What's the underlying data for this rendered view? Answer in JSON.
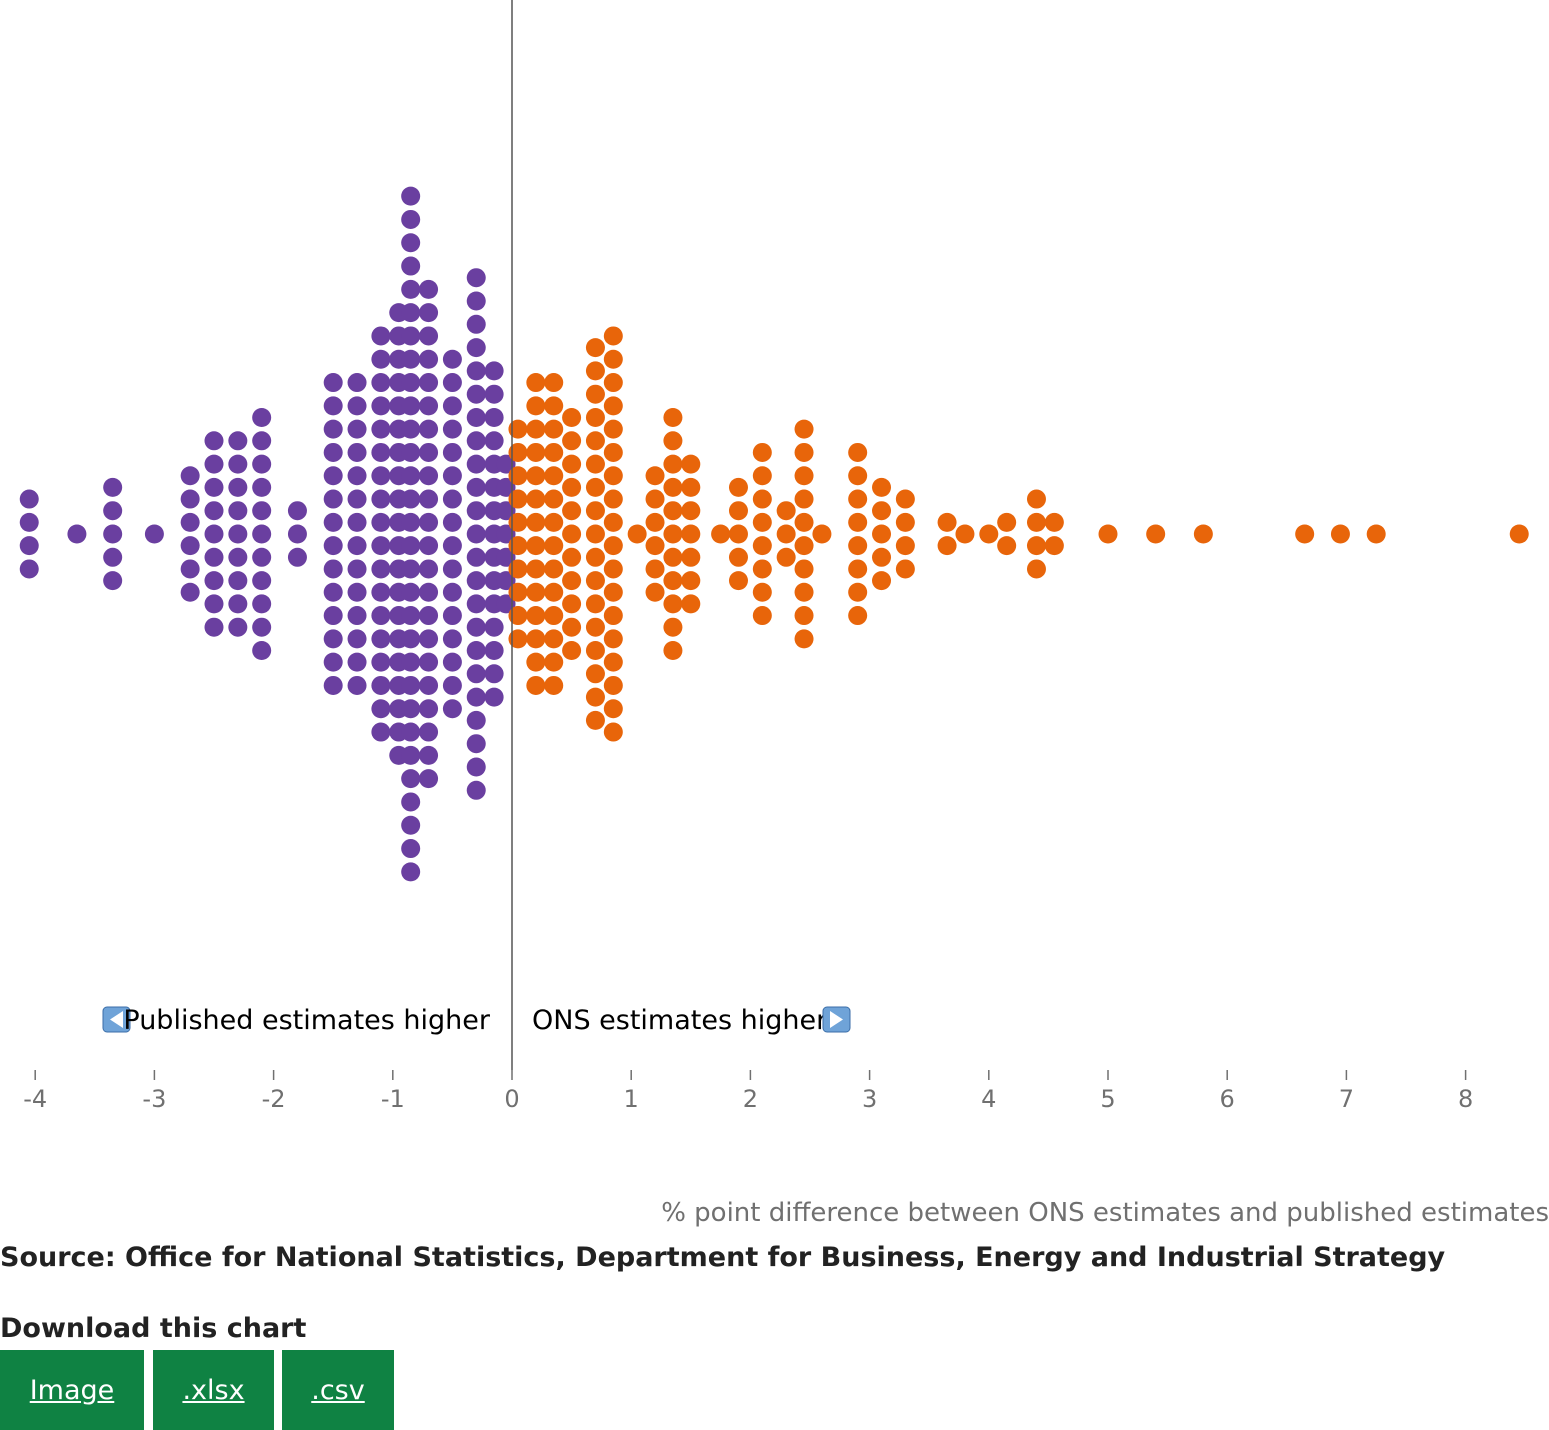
{
  "chart_data": {
    "type": "scatter",
    "subtype": "beeswarm",
    "title": "",
    "xlabel": "% point difference between ONS estimates and published estimates",
    "ylabel": "",
    "xlim": [
      -4.2,
      8.6
    ],
    "xticks": [
      -4,
      -3,
      -2,
      -1,
      0,
      1,
      2,
      3,
      4,
      5,
      6,
      7,
      8
    ],
    "reference_line": 0,
    "annotations": {
      "left": "Published estimates higher",
      "right": "ONS estimates higher"
    },
    "series": [
      {
        "group": "Published estimates higher",
        "color": "#6a3fa0",
        "columns": [
          {
            "x": -4.05,
            "count": 4
          },
          {
            "x": -3.65,
            "count": 1
          },
          {
            "x": -3.35,
            "count": 5
          },
          {
            "x": -3.0,
            "count": 1
          },
          {
            "x": -2.7,
            "count": 6
          },
          {
            "x": -2.5,
            "count": 9
          },
          {
            "x": -2.3,
            "count": 9
          },
          {
            "x": -2.1,
            "count": 11
          },
          {
            "x": -1.8,
            "count": 3
          },
          {
            "x": -1.5,
            "count": 14
          },
          {
            "x": -1.3,
            "count": 14
          },
          {
            "x": -1.1,
            "count": 18
          },
          {
            "x": -0.95,
            "count": 20
          },
          {
            "x": -0.85,
            "count": 30
          },
          {
            "x": -0.7,
            "count": 22
          },
          {
            "x": -0.5,
            "count": 16
          },
          {
            "x": -0.3,
            "count": 23
          },
          {
            "x": -0.15,
            "count": 15
          },
          {
            "x": -0.05,
            "count": 7
          }
        ]
      },
      {
        "group": "ONS estimates higher",
        "color": "#e8650a",
        "columns": [
          {
            "x": 0.05,
            "count": 10
          },
          {
            "x": 0.2,
            "count": 14
          },
          {
            "x": 0.35,
            "count": 14
          },
          {
            "x": 0.5,
            "count": 11
          },
          {
            "x": 0.7,
            "count": 17
          },
          {
            "x": 0.85,
            "count": 18
          },
          {
            "x": 1.05,
            "count": 1
          },
          {
            "x": 1.2,
            "count": 6
          },
          {
            "x": 1.35,
            "count": 11
          },
          {
            "x": 1.5,
            "count": 7
          },
          {
            "x": 1.75,
            "count": 1
          },
          {
            "x": 1.9,
            "count": 5
          },
          {
            "x": 2.1,
            "count": 8
          },
          {
            "x": 2.3,
            "count": 3
          },
          {
            "x": 2.45,
            "count": 10
          },
          {
            "x": 2.6,
            "count": 1
          },
          {
            "x": 2.9,
            "count": 8
          },
          {
            "x": 3.1,
            "count": 5
          },
          {
            "x": 3.3,
            "count": 4
          },
          {
            "x": 3.65,
            "count": 2
          },
          {
            "x": 3.8,
            "count": 1
          },
          {
            "x": 4.0,
            "count": 1
          },
          {
            "x": 4.15,
            "count": 2
          },
          {
            "x": 4.4,
            "count": 4
          },
          {
            "x": 4.55,
            "count": 2
          },
          {
            "x": 5.0,
            "count": 1
          },
          {
            "x": 5.4,
            "count": 1
          },
          {
            "x": 5.8,
            "count": 1
          },
          {
            "x": 6.65,
            "count": 1
          },
          {
            "x": 6.95,
            "count": 1
          },
          {
            "x": 7.25,
            "count": 1
          },
          {
            "x": 8.45,
            "count": 1
          }
        ]
      }
    ]
  },
  "source_text": "Source: Office for National Statistics, Department for Business, Energy and Industrial Strategy",
  "download": {
    "title": "Download this chart",
    "buttons": [
      ".xlsx",
      ".csv",
      "Image"
    ],
    "image_label": "Image",
    "xlsx_label": ".xlsx",
    "csv_label": ".csv"
  },
  "colors": {
    "published_higher": "#6a3fa0",
    "ons_higher": "#e8650a",
    "button_bg": "#0f8243",
    "axis": "#707070"
  }
}
